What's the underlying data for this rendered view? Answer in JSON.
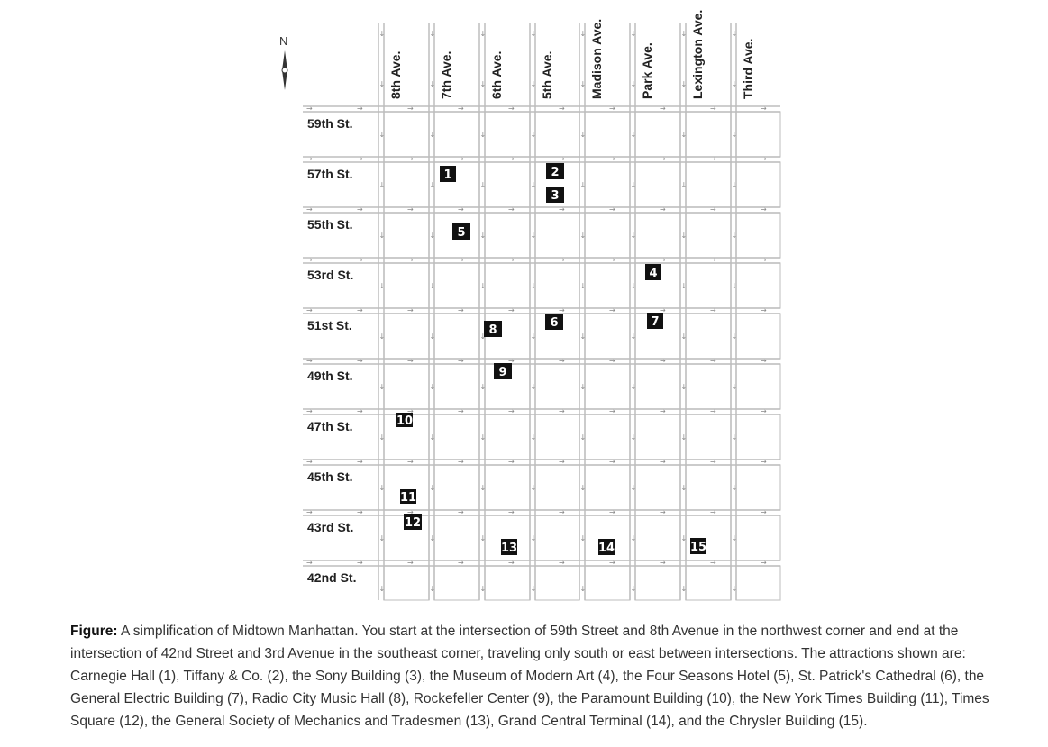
{
  "compass": {
    "letter": "N",
    "icon": "compass-north-icon"
  },
  "avenues": [
    "8th Ave.",
    "7th Ave.",
    "6th Ave.",
    "5th Ave.",
    "Madison Ave.",
    "Park Ave.",
    "Lexington Ave.",
    "Third Ave."
  ],
  "streets": [
    "59th St.",
    "57th St.",
    "55th St.",
    "53rd St.",
    "51st St.",
    "49th St.",
    "47th St.",
    "45th St.",
    "43rd St.",
    "42nd St."
  ],
  "attractions": [
    {
      "label": "1",
      "name": "Carnegie Hall",
      "street": "57th St.",
      "avenue": "between 8th Ave. and 7th Ave."
    },
    {
      "label": "2",
      "name": "Tiffany & Co.",
      "street": "57th St.",
      "avenue": "5th Ave."
    },
    {
      "label": "3",
      "name": "the Sony Building",
      "street": "57th St.",
      "avenue": "5th Ave."
    },
    {
      "label": "4",
      "name": "the Museum of Modern Art",
      "street": "53rd St.",
      "avenue": "Park Ave."
    },
    {
      "label": "5",
      "name": "the Four Seasons Hotel",
      "street": "55th St.",
      "avenue": "7th Ave."
    },
    {
      "label": "6",
      "name": "St. Patrick's Cathedral",
      "street": "51st St.",
      "avenue": "5th Ave."
    },
    {
      "label": "7",
      "name": "the General Electric Building",
      "street": "51st St.",
      "avenue": "Park Ave."
    },
    {
      "label": "8",
      "name": "Radio City Music Hall",
      "street": "51st St.",
      "avenue": "6th Ave."
    },
    {
      "label": "9",
      "name": "Rockefeller Center",
      "street": "49th St.",
      "avenue": "6th Ave."
    },
    {
      "label": "10",
      "name": "the Paramount Building",
      "street": "47th St.",
      "avenue": "8th Ave."
    },
    {
      "label": "11",
      "name": "the New York Times Building",
      "street": "45th St.",
      "avenue": "8th Ave."
    },
    {
      "label": "12",
      "name": "Times Square",
      "street": "43rd St.",
      "avenue": "8th Ave."
    },
    {
      "label": "13",
      "name": "the General Society of Mechanics and Tradesmen",
      "street": "43rd St.",
      "avenue": "6th Ave."
    },
    {
      "label": "14",
      "name": "Grand Central Terminal",
      "street": "43rd St.",
      "avenue": "Madison Ave."
    },
    {
      "label": "15",
      "name": "the Chrysler Building",
      "street": "43rd St.",
      "avenue": "Lexington Ave."
    }
  ],
  "caption": {
    "lead": "Figure:",
    "text": " A simplification of Midtown Manhattan. You start at the intersection of 59th Street and 8th Avenue in the northwest corner and end at the intersection of 42nd Street and 3rd Avenue in the southeast corner, traveling only south or east between intersections. The attractions shown are: Carnegie Hall (1), Tiffany & Co. (2), the Sony Building (3), the Museum of Modern Art (4), the Four Seasons Hotel (5), St. Patrick's Cathedral (6), the General Electric Building (7), Radio City Music Hall (8), Rockefeller Center (9), the Paramount Building (10), the New York Times Building (11), Times Square (12), the General Society of Mechanics and Tradesmen (13), Grand Central Terminal (14), and the Chrysler Building (15)."
  }
}
